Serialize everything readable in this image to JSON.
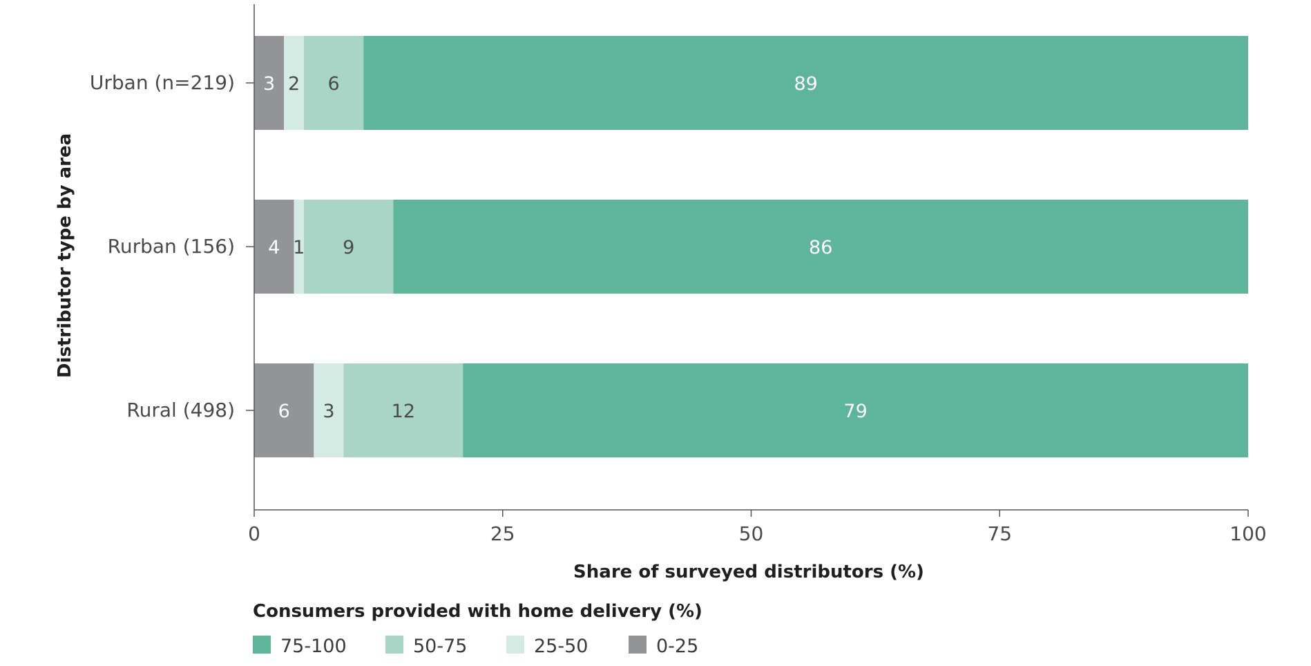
{
  "chart_data": {
    "type": "bar",
    "orientation": "horizontal",
    "stacked": true,
    "xlabel": "Share of surveyed distributors (%)",
    "ylabel": "Distributor type by area",
    "xlim": [
      0,
      100
    ],
    "x_ticks": [
      "0",
      "25",
      "50",
      "75",
      "100"
    ],
    "grid": false,
    "categories": [
      "Urban (n=219)",
      "Rurban (156)",
      "Rural (498)"
    ],
    "series": [
      {
        "name": "0-25",
        "color": "#929497",
        "label_color": "#ffffff",
        "values": [
          3,
          4,
          6
        ]
      },
      {
        "name": "25-50",
        "color": "#d4ebe3",
        "label_color": "#4a4a4a",
        "values": [
          2,
          1,
          3
        ]
      },
      {
        "name": "50-75",
        "color": "#a8d5c5",
        "label_color": "#4a4a4a",
        "values": [
          6,
          9,
          12
        ]
      },
      {
        "name": "75-100",
        "color": "#5db699",
        "label_color": "#ffffff",
        "values": [
          89,
          86,
          79
        ]
      }
    ],
    "legend": {
      "title": "Consumers provided with home delivery (%)",
      "placement": "bottom-left",
      "order": [
        "75-100",
        "50-75",
        "25-50",
        "0-25"
      ]
    }
  }
}
